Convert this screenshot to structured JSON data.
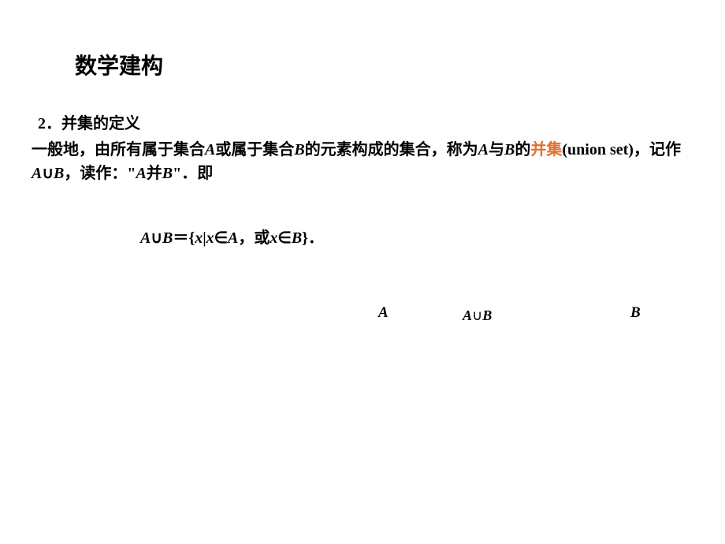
{
  "colors": {
    "background": "#ffffff",
    "text": "#000000",
    "highlight": "#e07030"
  },
  "title": "数学建构",
  "heading_num": "2",
  "heading_sep": "．",
  "heading_text": "并集的定义",
  "def": {
    "part1": "一般地，由所有属于集合",
    "A1": "A",
    "part2": "或属于集合",
    "B1": "B",
    "part3": "的元素构成的集合，称为",
    "A2": "A",
    "yue": "与",
    "B2": "B",
    "de": "的",
    "highlight": "并集",
    "paren_open": "(",
    "english": "union set",
    "paren_close": ")",
    "part4": "，记作",
    "A3": "A",
    "cup1": "∪",
    "B3": "B",
    "part5": "，读作：\"",
    "A4": "A",
    "bing": "并",
    "B4": "B",
    "part6": "\"．即"
  },
  "formula": {
    "A": "A",
    "cup": "∪",
    "B": "B",
    "eq": "＝",
    "lbrace": "{",
    "x1": "x",
    "bar": "|",
    "x2": "x",
    "in1": "∈",
    "A2": "A",
    "comma": "，或",
    "x3": "x",
    "in2": "∈",
    "B2": "B",
    "rbrace": "}",
    "period": "．"
  },
  "diagram": {
    "labelA": "A",
    "labelAUB_A": "A",
    "labelAUB_cup": "∪",
    "labelAUB_B": "B",
    "labelB": "B"
  }
}
